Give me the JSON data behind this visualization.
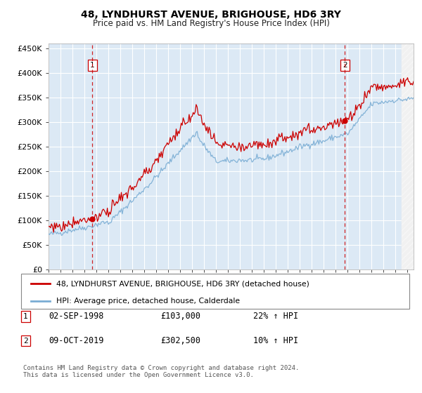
{
  "title": "48, LYNDHURST AVENUE, BRIGHOUSE, HD6 3RY",
  "subtitle": "Price paid vs. HM Land Registry's House Price Index (HPI)",
  "background_color": "#dce9f5",
  "plot_bg_color": "#dce9f5",
  "red_line_color": "#cc0000",
  "blue_line_color": "#7aadd4",
  "grid_color": "#ffffff",
  "dashed_line_color": "#cc0000",
  "sale1_date": 1998.67,
  "sale1_price": 103000,
  "sale2_date": 2019.77,
  "sale2_price": 302500,
  "xmin": 1995.0,
  "xmax": 2025.5,
  "ymin": 0,
  "ymax": 460000,
  "yticks": [
    0,
    50000,
    100000,
    150000,
    200000,
    250000,
    300000,
    350000,
    400000,
    450000
  ],
  "ytick_labels": [
    "£0",
    "£50K",
    "£100K",
    "£150K",
    "£200K",
    "£250K",
    "£300K",
    "£350K",
    "£400K",
    "£450K"
  ],
  "xtick_years": [
    1995,
    1996,
    1997,
    1998,
    1999,
    2000,
    2001,
    2002,
    2003,
    2004,
    2005,
    2006,
    2007,
    2008,
    2009,
    2010,
    2011,
    2012,
    2013,
    2014,
    2015,
    2016,
    2017,
    2018,
    2019,
    2020,
    2021,
    2022,
    2023,
    2024,
    2025
  ],
  "legend_red_label": "48, LYNDHURST AVENUE, BRIGHOUSE, HD6 3RY (detached house)",
  "legend_blue_label": "HPI: Average price, detached house, Calderdale",
  "table_row1_num": "1",
  "table_row1_date": "02-SEP-1998",
  "table_row1_price": "£103,000",
  "table_row1_hpi": "22% ↑ HPI",
  "table_row2_num": "2",
  "table_row2_date": "09-OCT-2019",
  "table_row2_price": "£302,500",
  "table_row2_hpi": "10% ↑ HPI",
  "footnote": "Contains HM Land Registry data © Crown copyright and database right 2024.\nThis data is licensed under the Open Government Licence v3.0."
}
